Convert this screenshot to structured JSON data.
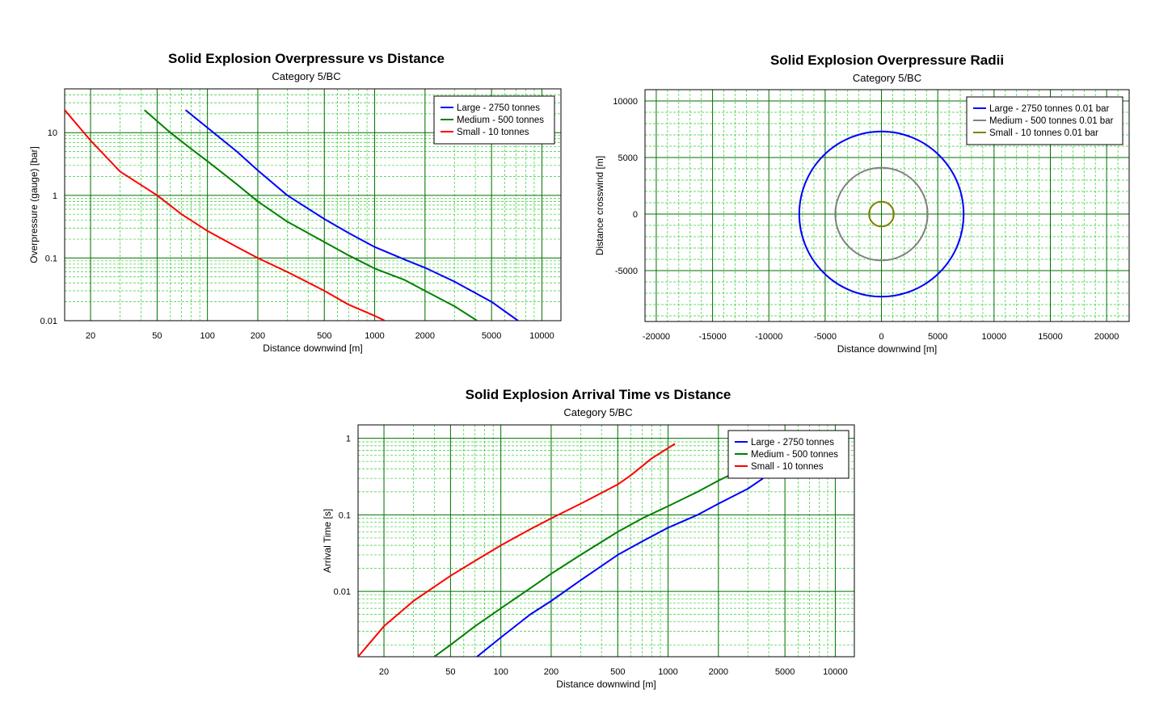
{
  "chart_data": [
    {
      "type": "line",
      "title": "Solid Explosion Overpressure vs Distance",
      "subtitle": "Category 5/BC",
      "xlabel": "Distance downwind [m]",
      "ylabel": "Overpressure (gauge) [bar]",
      "xscale": "log",
      "yscale": "log",
      "xlim": [
        14,
        13000
      ],
      "ylim": [
        0.01,
        50
      ],
      "xticks": [
        {
          "v": 20,
          "label": "20"
        },
        {
          "v": 50,
          "label": "50"
        },
        {
          "v": 100,
          "label": "100"
        },
        {
          "v": 200,
          "label": "200"
        },
        {
          "v": 500,
          "label": "500"
        },
        {
          "v": 1000,
          "label": "1000"
        },
        {
          "v": 2000,
          "label": "2000"
        },
        {
          "v": 5000,
          "label": "5000"
        },
        {
          "v": 10000,
          "label": "10000"
        }
      ],
      "yticks": [
        {
          "v": 0.01,
          "label": "0.01"
        },
        {
          "v": 0.1,
          "label": "0.1"
        },
        {
          "v": 1,
          "label": "1"
        },
        {
          "v": 10,
          "label": "10"
        }
      ],
      "grid": true,
      "legend": "top-right",
      "series": [
        {
          "name": "Large - 2750 tonnes",
          "color": "#0000ff",
          "x": [
            74,
            100,
            150,
            200,
            300,
            500,
            700,
            1000,
            1500,
            2000,
            3000,
            5000,
            7200
          ],
          "y": [
            23,
            12,
            5,
            2.5,
            1.0,
            0.42,
            0.25,
            0.15,
            0.095,
            0.07,
            0.042,
            0.02,
            0.01
          ]
        },
        {
          "name": "Medium - 500 tonnes",
          "color": "#008000",
          "x": [
            42,
            60,
            80,
            100,
            150,
            200,
            300,
            500,
            700,
            1000,
            1500,
            2000,
            3000,
            4100
          ],
          "y": [
            23,
            10,
            5.5,
            3.5,
            1.5,
            0.8,
            0.38,
            0.18,
            0.11,
            0.068,
            0.045,
            0.03,
            0.017,
            0.01
          ]
        },
        {
          "name": "Small - 10 tonnes",
          "color": "#ff0000",
          "x": [
            14,
            20,
            30,
            50,
            70,
            100,
            150,
            200,
            300,
            500,
            700,
            1000,
            1150
          ],
          "y": [
            23,
            7.5,
            2.4,
            1.0,
            0.5,
            0.27,
            0.15,
            0.1,
            0.06,
            0.03,
            0.018,
            0.012,
            0.01
          ]
        }
      ]
    },
    {
      "type": "line",
      "title": "Solid Explosion Overpressure Radii",
      "subtitle": "Category 5/BC",
      "xlabel": "Distance downwind [m]",
      "ylabel": "Distance crosswind [m]",
      "xscale": "linear",
      "yscale": "linear",
      "xlim": [
        -21000,
        22000
      ],
      "ylim": [
        -9500,
        11000
      ],
      "xticks": [
        {
          "v": -20000,
          "label": "-20000"
        },
        {
          "v": -15000,
          "label": "-15000"
        },
        {
          "v": -10000,
          "label": "-10000"
        },
        {
          "v": -5000,
          "label": "-5000"
        },
        {
          "v": 0,
          "label": "0"
        },
        {
          "v": 5000,
          "label": "5000"
        },
        {
          "v": 10000,
          "label": "10000"
        },
        {
          "v": 15000,
          "label": "15000"
        },
        {
          "v": 20000,
          "label": "20000"
        }
      ],
      "yticks": [
        {
          "v": -5000,
          "label": "-5000"
        },
        {
          "v": 0,
          "label": "0"
        },
        {
          "v": 5000,
          "label": "5000"
        },
        {
          "v": 10000,
          "label": "10000"
        }
      ],
      "grid": true,
      "legend": "top-right",
      "series": [
        {
          "name": "Large - 2750 tonnes 0.01 bar",
          "color": "#0000ff",
          "shape": "circle",
          "center": [
            0,
            0
          ],
          "radius": 7300
        },
        {
          "name": "Medium - 500 tonnes 0.01 bar",
          "color": "#808080",
          "shape": "circle",
          "center": [
            0,
            0
          ],
          "radius": 4100
        },
        {
          "name": "Small - 10 tonnes 0.01 bar",
          "color": "#808000",
          "shape": "circle",
          "center": [
            0,
            0
          ],
          "radius": 1100
        }
      ]
    },
    {
      "type": "line",
      "title": "Solid Explosion Arrival Time vs Distance",
      "subtitle": "Category 5/BC",
      "xlabel": "Distance downwind [m]",
      "ylabel": "Arrival Time [s]",
      "xscale": "log",
      "yscale": "log",
      "xlim": [
        14,
        13000
      ],
      "ylim": [
        0.0014,
        1.5
      ],
      "xticks": [
        {
          "v": 20,
          "label": "20"
        },
        {
          "v": 50,
          "label": "50"
        },
        {
          "v": 100,
          "label": "100"
        },
        {
          "v": 200,
          "label": "200"
        },
        {
          "v": 500,
          "label": "500"
        },
        {
          "v": 1000,
          "label": "1000"
        },
        {
          "v": 2000,
          "label": "2000"
        },
        {
          "v": 5000,
          "label": "5000"
        },
        {
          "v": 10000,
          "label": "10000"
        }
      ],
      "yticks": [
        {
          "v": 0.01,
          "label": "0.01"
        },
        {
          "v": 0.1,
          "label": "0.1"
        },
        {
          "v": 1,
          "label": "1"
        }
      ],
      "grid": true,
      "legend": "top-right",
      "series": [
        {
          "name": "Large - 2750 tonnes",
          "color": "#0000ff",
          "x": [
            72,
            100,
            150,
            200,
            300,
            500,
            700,
            1000,
            1500,
            2000,
            3000,
            3700
          ],
          "y": [
            0.0014,
            0.0025,
            0.005,
            0.0075,
            0.014,
            0.03,
            0.045,
            0.068,
            0.1,
            0.14,
            0.22,
            0.3
          ]
        },
        {
          "name": "Medium - 500 tonnes",
          "color": "#008000",
          "x": [
            40,
            50,
            70,
            100,
            150,
            200,
            300,
            500,
            700,
            1000,
            1500,
            2000,
            2400
          ],
          "y": [
            0.0014,
            0.002,
            0.0035,
            0.006,
            0.011,
            0.017,
            0.03,
            0.06,
            0.09,
            0.13,
            0.2,
            0.28,
            0.34
          ]
        },
        {
          "name": "Small - 10 tonnes",
          "color": "#ff0000",
          "x": [
            14,
            20,
            30,
            50,
            70,
            100,
            150,
            200,
            300,
            500,
            600,
            800,
            1100
          ],
          "y": [
            0.0014,
            0.0035,
            0.0075,
            0.016,
            0.025,
            0.04,
            0.065,
            0.09,
            0.14,
            0.25,
            0.33,
            0.55,
            0.85
          ]
        }
      ]
    }
  ]
}
